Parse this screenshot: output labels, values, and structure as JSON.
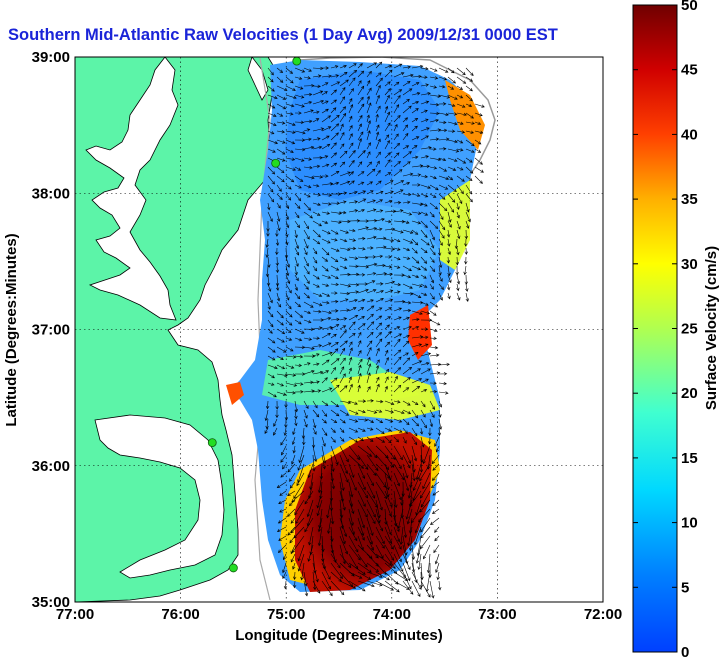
{
  "title": "Southern Mid-Atlantic Raw Velocities (1 Day Avg) 2009/12/31 0000 EST",
  "map": {
    "xlabel": "Longitude (Degrees:Minutes)",
    "ylabel": "Latitude (Degrees:Minutes)",
    "x_ticks": [
      "77:00",
      "76:00",
      "75:00",
      "74:00",
      "73:00",
      "72:00"
    ],
    "y_ticks": [
      "39:00",
      "38:00",
      "37:00",
      "36:00",
      "35:00"
    ],
    "lon_range": [
      -77,
      -72
    ],
    "lat_range": [
      35,
      39
    ],
    "grid": true,
    "land_color": "#5cf4a8",
    "coast_color": "#000000"
  },
  "colorbar": {
    "label": "Surface Velocity (cm/s)",
    "ticks": [
      "0",
      "5",
      "10",
      "15",
      "20",
      "25",
      "30",
      "35",
      "40",
      "45",
      "50"
    ],
    "range": [
      0,
      50
    ],
    "colormap": "jet"
  },
  "stations": [
    {
      "lon": -74.9,
      "lat": 38.97
    },
    {
      "lon": -75.1,
      "lat": 38.22
    },
    {
      "lon": -75.7,
      "lat": 36.17
    },
    {
      "lon": -75.5,
      "lat": 35.25
    }
  ]
}
